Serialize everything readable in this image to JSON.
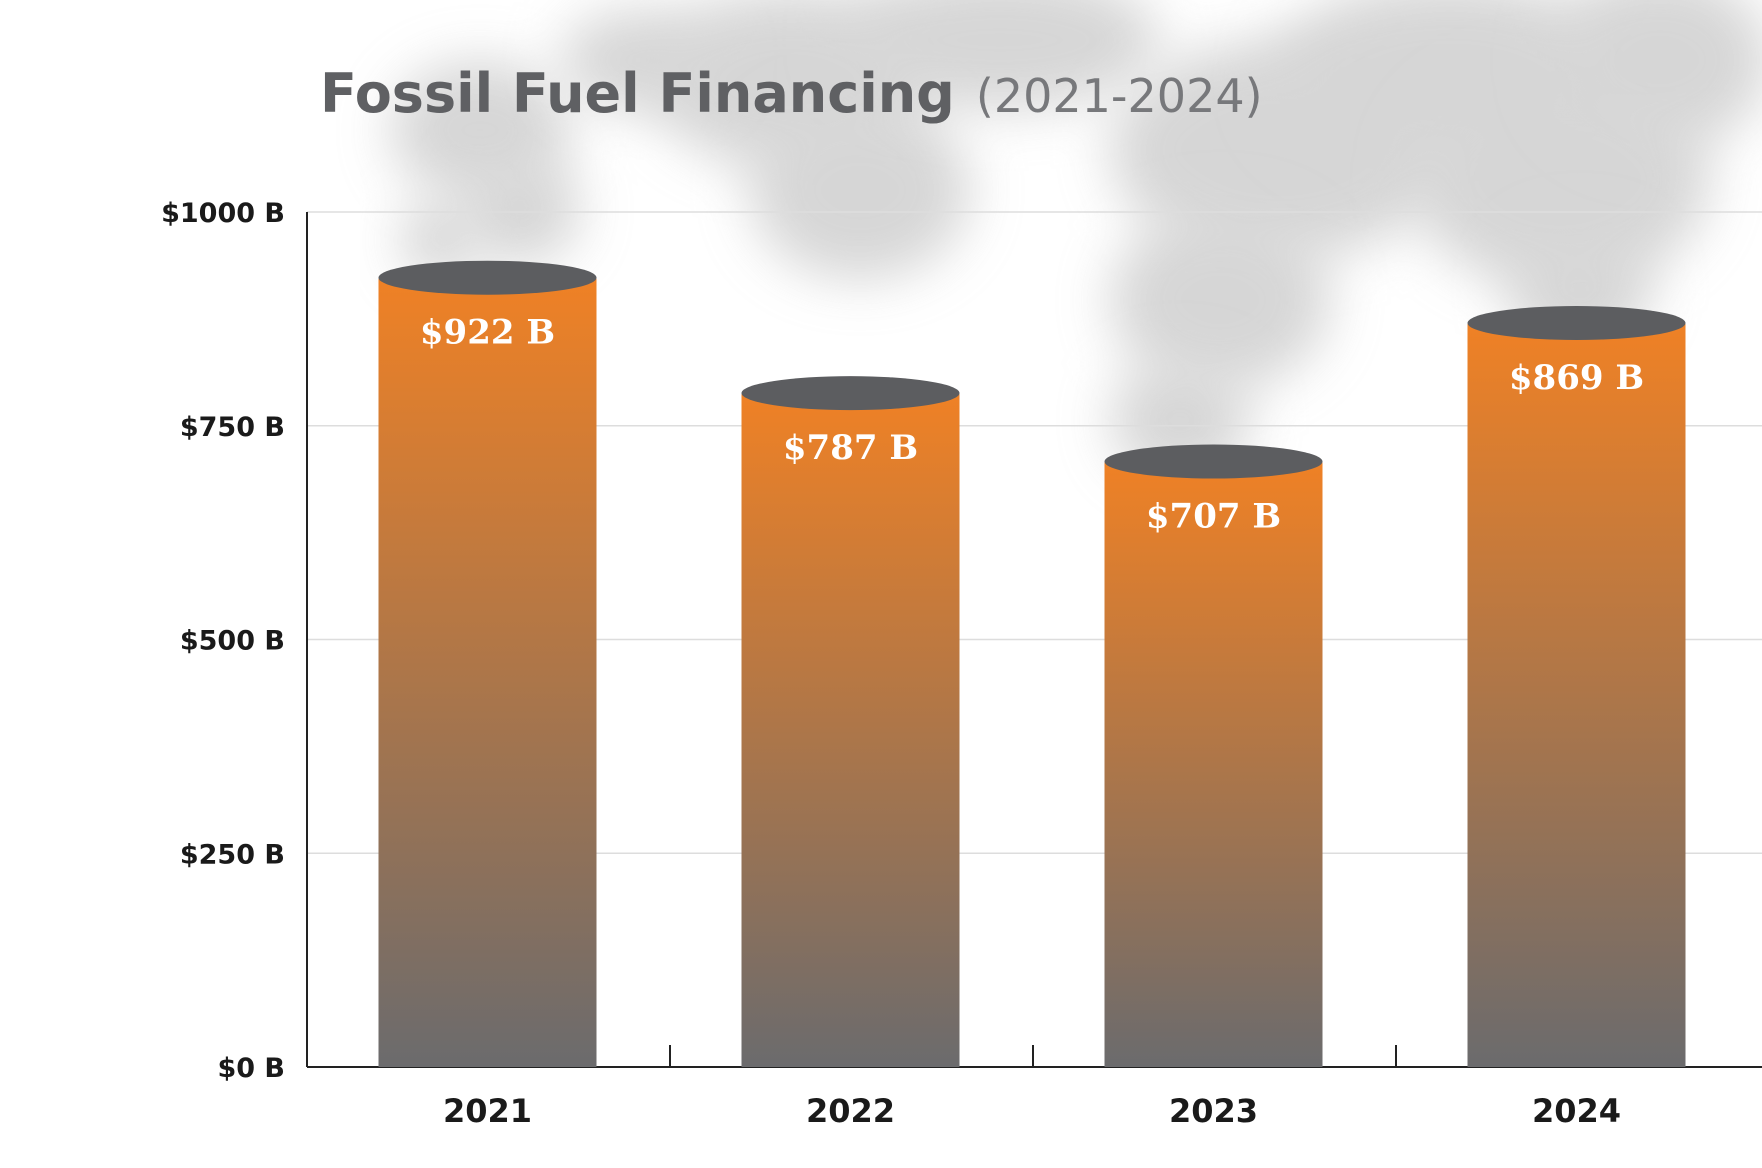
{
  "chart_data": {
    "type": "bar",
    "title": "Fossil Fuel Financing",
    "subtitle": "(2021-2024)",
    "categories": [
      "2021",
      "2022",
      "2023",
      "2024"
    ],
    "values": [
      922,
      787,
      707,
      869
    ],
    "data_labels": [
      "$922 B",
      "$787 B",
      "$707 B",
      "$869 B"
    ],
    "ylim": [
      0,
      1000
    ],
    "yticks": [
      0,
      250,
      500,
      750,
      1000
    ],
    "ytick_labels": [
      "$0  B",
      "$250  B",
      "$500  B",
      "$750  B",
      "$1000  B"
    ],
    "xlabel": "",
    "ylabel": "",
    "grid": true,
    "legend": "none"
  },
  "colors": {
    "bar_top": "#ef8125",
    "bar_bottom": "#6b6b6d",
    "cap": "#5c5d60",
    "title": "#5f6063",
    "subtitle": "#77787b",
    "axis_text": "#1a1a1a",
    "data_label": "#ffffff",
    "grid": "#dddddd",
    "smoke": "#b5b5b5"
  }
}
